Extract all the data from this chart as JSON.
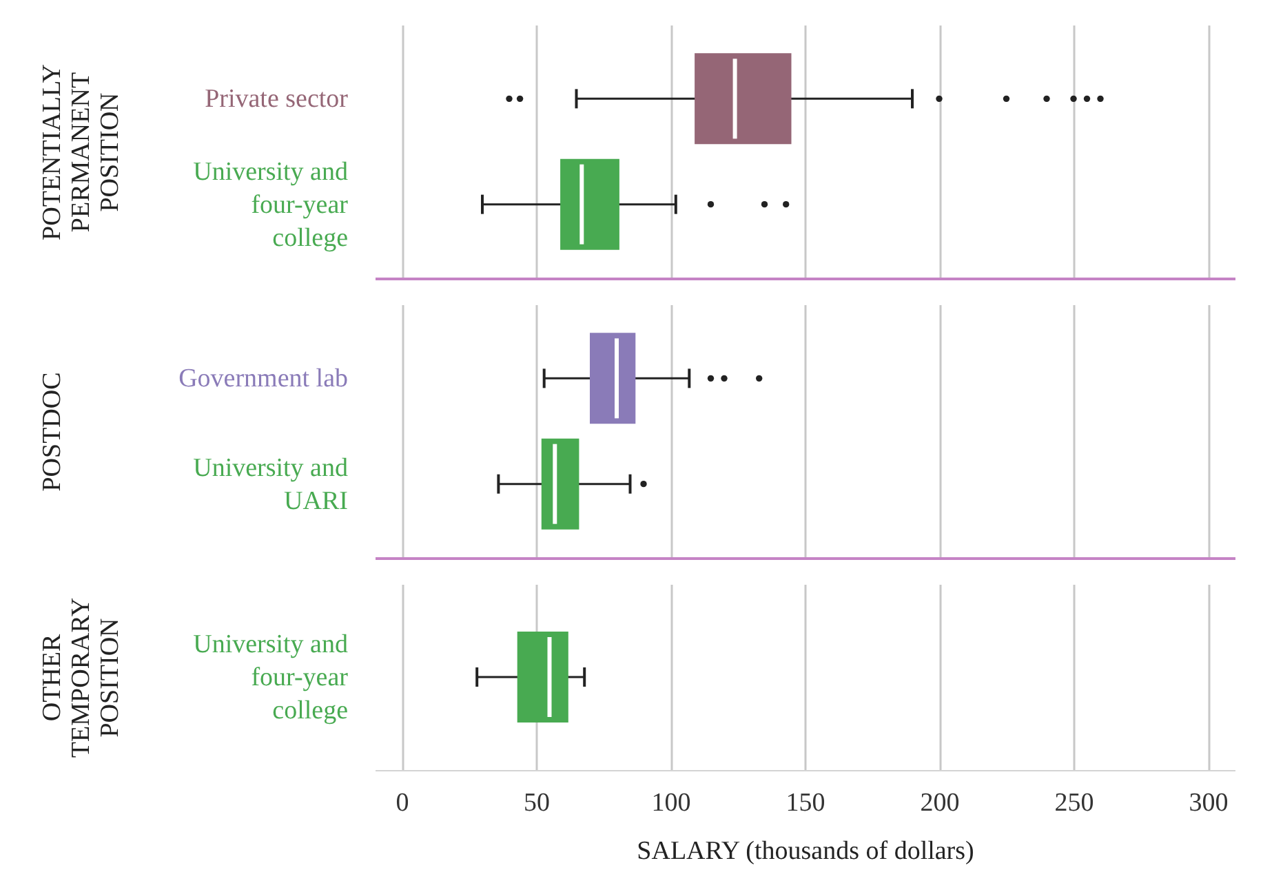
{
  "chart_data": [
    {
      "type": "box",
      "orientation": "horizontal",
      "ylabel": "POTENTIALLY PERMANENT POSITION",
      "categories": [
        "Private sector",
        "University and four-year college"
      ],
      "colors": [
        "#956676",
        "#48aa51"
      ],
      "boxes": [
        {
          "low": 65,
          "q1": 109,
          "median": 124,
          "q3": 145,
          "high": 190,
          "outliers": [
            40,
            44,
            200,
            225,
            240,
            250,
            255,
            260
          ]
        },
        {
          "low": 30,
          "q1": 59,
          "median": 67,
          "q3": 81,
          "high": 102,
          "outliers": [
            115,
            135,
            143
          ]
        }
      ],
      "xlim": [
        -10,
        310
      ],
      "xticks": [
        0,
        50,
        100,
        150,
        200,
        250,
        300
      ],
      "grid": "x",
      "tick_labels": "y"
    },
    {
      "type": "box",
      "orientation": "horizontal",
      "ylabel": "POSTDOC",
      "categories": [
        "Government lab",
        "University and UARI"
      ],
      "colors": [
        "#8a7bb8",
        "#48aa51"
      ],
      "boxes": [
        {
          "low": 53,
          "q1": 70,
          "median": 80,
          "q3": 87,
          "high": 107,
          "outliers": [
            115,
            120,
            133
          ]
        },
        {
          "low": 36,
          "q1": 52,
          "median": 57,
          "q3": 66,
          "high": 85,
          "outliers": [
            90
          ]
        }
      ],
      "xlim": [
        -10,
        310
      ],
      "xticks": [
        0,
        50,
        100,
        150,
        200,
        250,
        300
      ],
      "grid": "x",
      "tick_labels": "y"
    },
    {
      "type": "box",
      "orientation": "horizontal",
      "ylabel": "OTHER TEMPORARY POSITION",
      "xlabel": "SALARY (thousands of dollars)",
      "categories": [
        "University and four-year college"
      ],
      "colors": [
        "#48aa51"
      ],
      "boxes": [
        {
          "low": 28,
          "q1": 43,
          "median": 55,
          "q3": 62,
          "high": 68
        }
      ],
      "xlim": [
        -10,
        310
      ],
      "xticks": [
        0,
        50,
        100,
        150,
        200,
        250,
        300
      ],
      "grid": "x"
    }
  ]
}
